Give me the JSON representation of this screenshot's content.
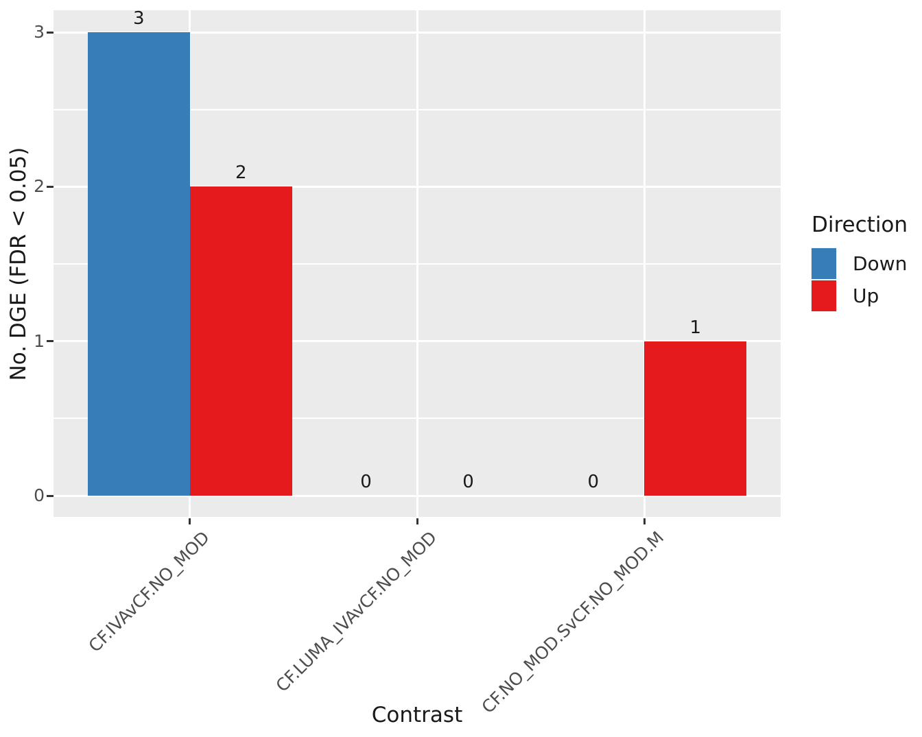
{
  "chart_data": {
    "type": "bar",
    "title": "",
    "xlabel": "Contrast",
    "ylabel": "No. DGE (FDR < 0.05)",
    "legend_title": "Direction",
    "legend_position": "right",
    "categories": [
      "CF.IVAvCF.NO_MOD",
      "CF.LUMA_IVAvCF.NO_MOD",
      "CF.NO_MOD.SvCF.NO_MOD.M"
    ],
    "series": [
      {
        "name": "Down",
        "color": "#377EB8",
        "values": [
          3,
          0,
          0
        ]
      },
      {
        "name": "Up",
        "color": "#E41A1C",
        "values": [
          2,
          0,
          1
        ]
      }
    ],
    "y_ticks": [
      0,
      1,
      2,
      3
    ],
    "y_minor_ticks": [
      0.5,
      1.5,
      2.5
    ],
    "ylim": [
      0,
      3.15
    ],
    "bar_layout": "dodge",
    "bar_value_labels_shown": true,
    "grid": true,
    "panel_background": "#EBEBEB",
    "grid_color": "#FFFFFF",
    "axis_text_color": "#4D4D4D",
    "tick_mark_color": "#333333",
    "text_color": "#1A1A1A"
  }
}
